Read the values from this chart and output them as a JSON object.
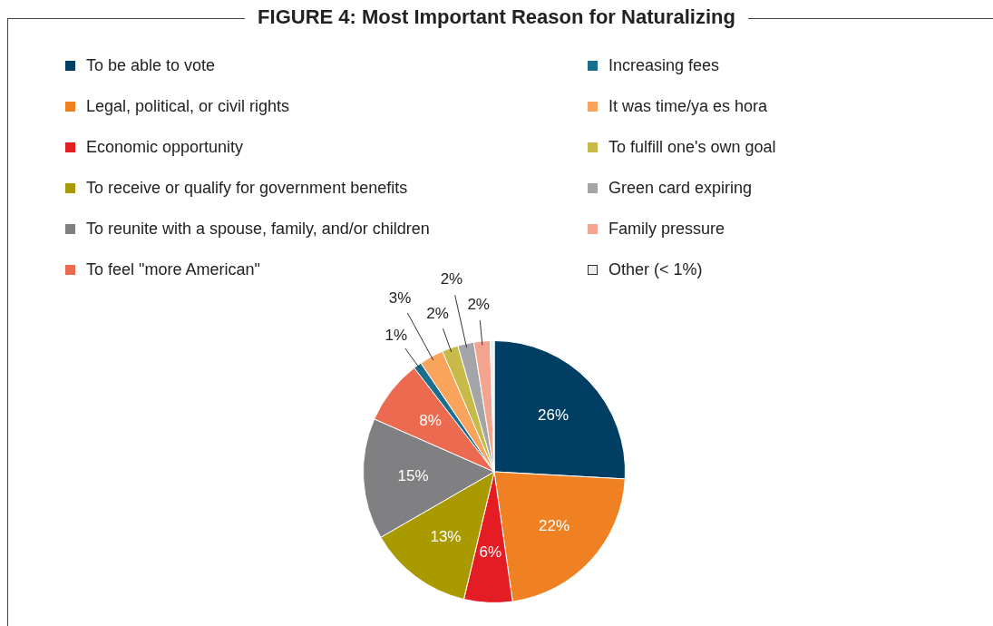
{
  "chart_data": {
    "type": "pie",
    "title": "FIGURE 4:  Most Important Reason for Naturalizing",
    "categories": [
      "To be able to vote",
      "Legal, political, or civil rights",
      "Economic opportunity",
      "To receive or qualify for government benefits",
      "To reunite with a spouse, family, and/or children",
      "To feel \"more American\"",
      "Increasing fees",
      "It was time/ya es hora",
      "To fulfill one's own goal",
      "Green card expiring",
      "Family pressure",
      "Other (< 1%)"
    ],
    "values": [
      26,
      22,
      6,
      13,
      15,
      8,
      1,
      3,
      2,
      2,
      2,
      0.5
    ],
    "value_labels": [
      "26%",
      "22%",
      "6%",
      "13%",
      "15%",
      "8%",
      "1%",
      "3%",
      "2%",
      "2%",
      "2%",
      null
    ],
    "colors": [
      "#003f63",
      "#f08122",
      "#e41d25",
      "#a89a00",
      "#808083",
      "#ec6a50",
      "#1a6e8e",
      "#f9a35c",
      "#c7ba48",
      "#a4a5a8",
      "#f4a48e",
      "#eeeeee"
    ],
    "legend": "top"
  }
}
